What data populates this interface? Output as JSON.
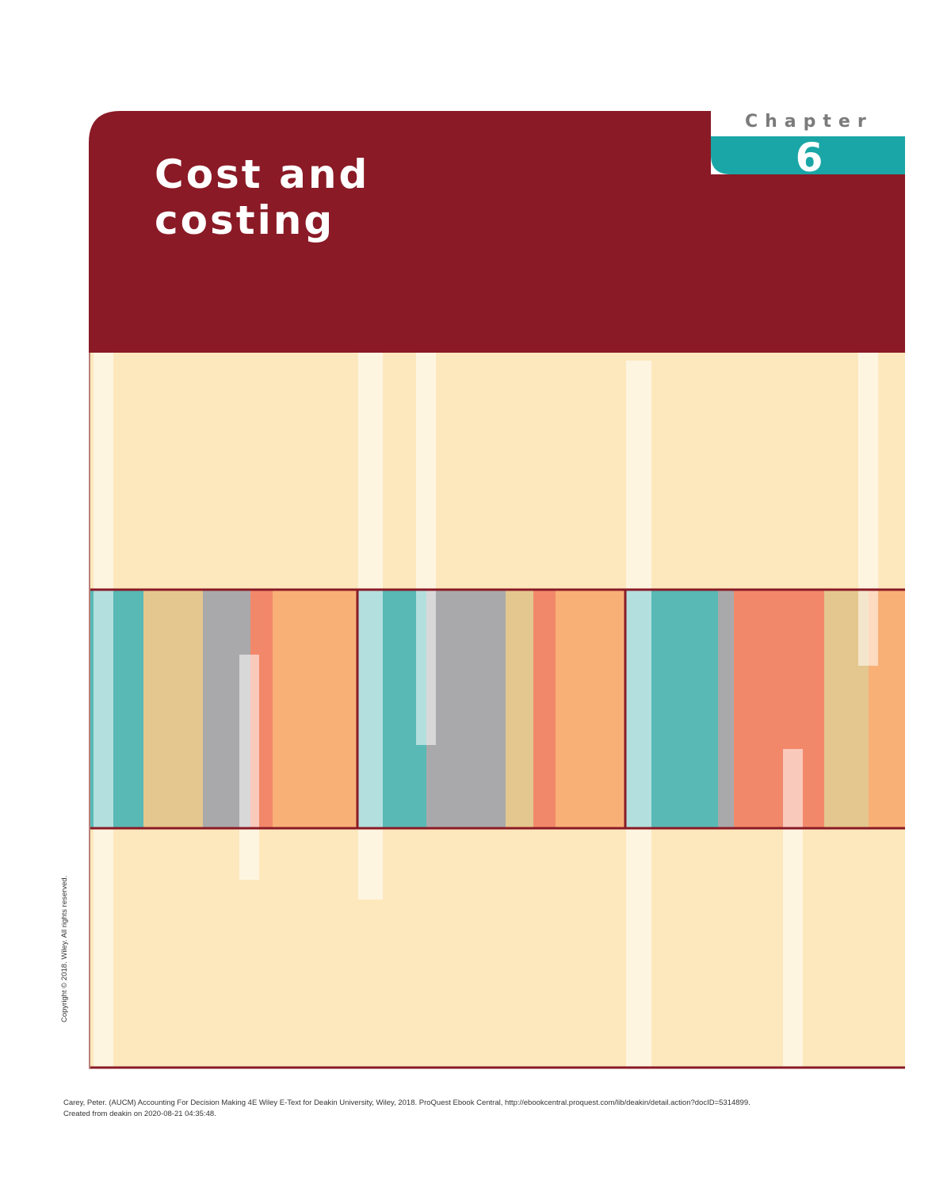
{
  "chapter": {
    "label": "Chapter",
    "number": "6"
  },
  "title": {
    "line1": "Cost and",
    "line2": "costing"
  },
  "copyright": "Copyright © 2018. Wiley. All rights reserved.",
  "footer": {
    "citation": "Carey, Peter. (AUCM) Accounting For Decision Making 4E Wiley E-Text for Deakin University, Wiley, 2018. ProQuest Ebook Central, http://ebookcentral.proquest.com/lib/deakin/detail.action?docID=5314899.",
    "created": "Created from deakin on 2020-08-21 04:35:48."
  }
}
